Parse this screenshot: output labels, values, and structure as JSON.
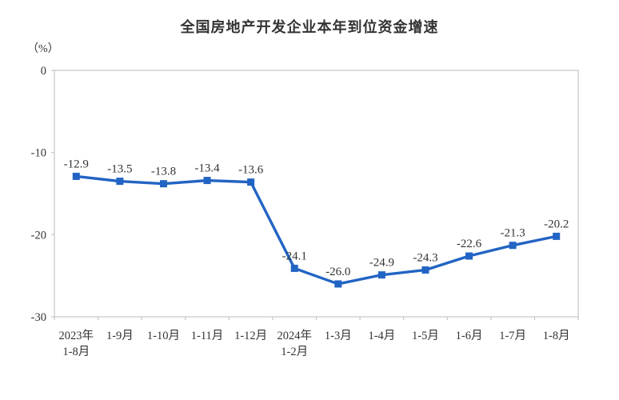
{
  "title": "全国房地产开发企业本年到位资金增速",
  "chart_data": {
    "type": "line",
    "title": "全国房地产开发企业本年到位资金增速",
    "unit_label": "（%）",
    "categories": [
      "2023年\n1-8月",
      "1-9月",
      "1-10月",
      "1-11月",
      "1-12月",
      "2024年\n1-2月",
      "1-3月",
      "1-4月",
      "1-5月",
      "1-6月",
      "1-7月",
      "1-8月"
    ],
    "values": [
      -12.9,
      -13.5,
      -13.8,
      -13.4,
      -13.6,
      -24.1,
      -26.0,
      -24.9,
      -24.3,
      -22.6,
      -21.3,
      -20.2
    ],
    "point_labels": [
      "-12.9",
      "-13.5",
      "-13.8",
      "-13.4",
      "-13.6",
      "-24.1",
      "-26.0",
      "-24.9",
      "-24.3",
      "-22.6",
      "-21.3",
      "-20.2"
    ],
    "ylim": [
      -30,
      0
    ],
    "yticks": [
      0,
      -10,
      -20,
      -30
    ],
    "ytick_labels": [
      "0",
      "-10",
      "-20",
      "-30"
    ],
    "grid": false,
    "legend_position": "none",
    "marker": "square",
    "line_color": "#2264C3",
    "marker_color": "#2264C3",
    "axis_color": "#c6c6c6",
    "text_color": "#333333"
  }
}
